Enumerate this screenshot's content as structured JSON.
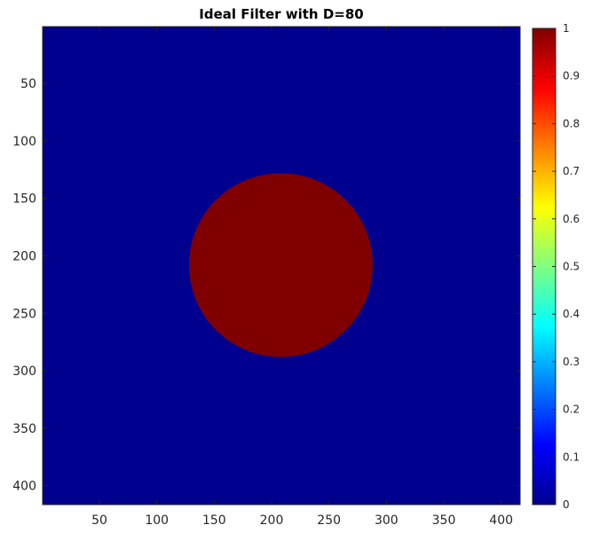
{
  "chart_data": {
    "type": "heatmap",
    "title": "Ideal Filter with D=80",
    "xlabel": "",
    "ylabel": "",
    "image_size": [
      416,
      416
    ],
    "xlim": [
      0.5,
      416.5
    ],
    "ylim": [
      0.5,
      416.5
    ],
    "y_direction": "reverse",
    "xticks": [
      50,
      100,
      150,
      200,
      250,
      300,
      350,
      400
    ],
    "xtick_labels": [
      "50",
      "100",
      "150",
      "200",
      "250",
      "300",
      "350",
      "400"
    ],
    "yticks": [
      50,
      100,
      150,
      200,
      250,
      300,
      350,
      400
    ],
    "ytick_labels": [
      "50",
      "100",
      "150",
      "200",
      "250",
      "300",
      "350",
      "400"
    ],
    "filter": {
      "shape": "disk",
      "center": [
        208,
        208
      ],
      "radius": 80,
      "value_inside": 1,
      "value_outside": 0
    },
    "colormap": "jet",
    "colorbar": {
      "position": "right",
      "clim": [
        0,
        1
      ],
      "ticks": [
        0,
        0.1,
        0.2,
        0.3,
        0.4,
        0.5,
        0.6,
        0.7,
        0.8,
        0.9,
        1
      ],
      "tick_labels": [
        "0",
        "0.1",
        "0.2",
        "0.3",
        "0.4",
        "0.5",
        "0.6",
        "0.7",
        "0.8",
        "0.9",
        "1"
      ]
    },
    "colors": {
      "low": "#00008f",
      "high": "#800000"
    },
    "grid": false
  }
}
